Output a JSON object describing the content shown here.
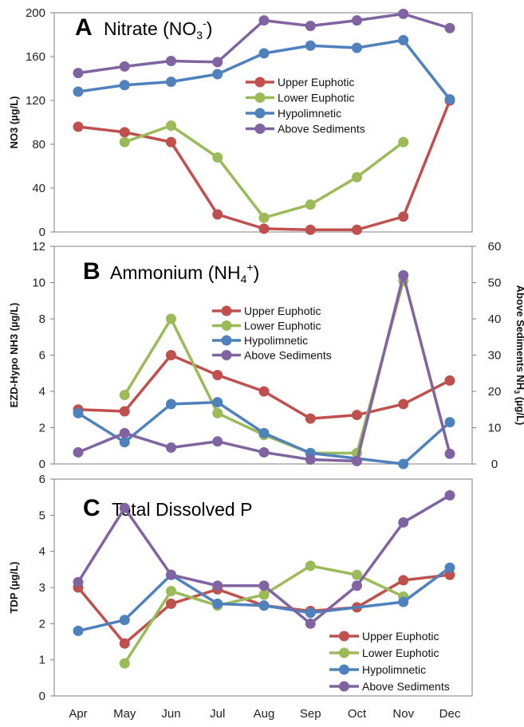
{
  "colors": {
    "upper_euphotic": "#c0504d",
    "lower_euphotic": "#9bbb59",
    "hypolimnetic": "#4f81bd",
    "above_sediments": "#8064a2"
  },
  "months": [
    "Apr",
    "May",
    "Jun",
    "Jul",
    "Aug",
    "Sep",
    "Oct",
    "Nov",
    "Dec"
  ],
  "chart_data": [
    {
      "type": "line",
      "letter": "A",
      "title": "Nitrate (NO",
      "title_sub": "3",
      "title_sup": "-",
      "title_end": ")",
      "ylabel": "NO3 (µg/L)",
      "ylim": [
        0,
        200
      ],
      "yticks": [
        "0",
        "40",
        "80",
        "120",
        "160",
        "200"
      ],
      "legend_position": "upper-right",
      "series": [
        {
          "name": "Upper Euphotic",
          "color": "#c0504d",
          "x": [
            "Apr",
            "May",
            "Jun",
            "Jul",
            "Aug",
            "Sep",
            "Oct",
            "Nov",
            "Dec"
          ],
          "values": [
            96,
            91,
            82,
            16,
            3,
            2,
            2,
            14,
            120
          ]
        },
        {
          "name": "Lower Euphotic",
          "color": "#9bbb59",
          "x": [
            "May",
            "Jun",
            "Jul",
            "Aug",
            "Sep",
            "Oct",
            "Nov"
          ],
          "values": [
            82,
            97,
            68,
            13,
            25,
            50,
            82
          ]
        },
        {
          "name": "Hypolimnetic",
          "color": "#4f81bd",
          "x": [
            "Apr",
            "May",
            "Jun",
            "Jul",
            "Aug",
            "Sep",
            "Oct",
            "Nov",
            "Dec"
          ],
          "values": [
            128,
            134,
            137,
            144,
            163,
            170,
            168,
            175,
            121
          ]
        },
        {
          "name": "Above Sediments",
          "color": "#8064a2",
          "x": [
            "Apr",
            "May",
            "Jun",
            "Jul",
            "Aug",
            "Sep",
            "Oct",
            "Nov",
            "Dec"
          ],
          "values": [
            145,
            151,
            156,
            155,
            193,
            188,
            193,
            199,
            186
          ]
        }
      ]
    },
    {
      "type": "line",
      "letter": "B",
      "title": "Ammonium (NH",
      "title_sub": "4",
      "title_sup": "+",
      "title_end": ")",
      "ylabel": "EZD-Hypo NH3 (µg/L)",
      "y2label_prefix": "Above Sediments NH",
      "y2label_sub": "3",
      "y2label_suffix": " (µg/L)",
      "ylim": [
        0,
        12
      ],
      "y2lim": [
        0,
        60
      ],
      "yticks": [
        "0",
        "2",
        "4",
        "6",
        "8",
        "10",
        "12"
      ],
      "y2ticks": [
        "0",
        "10",
        "20",
        "30",
        "40",
        "50",
        "60"
      ],
      "legend_position": "center-right",
      "series": [
        {
          "name": "Upper Euphotic",
          "color": "#c0504d",
          "axis": "left",
          "x": [
            "Apr",
            "May",
            "Jun",
            "Jul",
            "Aug",
            "Sep",
            "Oct",
            "Nov",
            "Dec"
          ],
          "values": [
            3.0,
            2.9,
            6.0,
            4.9,
            4.0,
            2.5,
            2.7,
            3.3,
            4.6
          ]
        },
        {
          "name": "Lower Euphotic",
          "color": "#9bbb59",
          "axis": "left",
          "x": [
            "May",
            "Jun",
            "Jul",
            "Aug",
            "Sep",
            "Oct",
            "Nov"
          ],
          "values": [
            3.8,
            8.0,
            2.8,
            1.6,
            0.6,
            0.6,
            10.1
          ]
        },
        {
          "name": "Hypolimnetic",
          "color": "#4f81bd",
          "axis": "left",
          "x": [
            "Apr",
            "May",
            "Jun",
            "Jul",
            "Aug",
            "Sep",
            "Nov",
            "Dec"
          ],
          "values": [
            2.8,
            1.2,
            3.3,
            3.4,
            1.7,
            0.6,
            0.0,
            2.3
          ]
        },
        {
          "name": "Above Sediments",
          "color": "#8064a2",
          "axis": "right",
          "x": [
            "Apr",
            "May",
            "Jun",
            "Jul",
            "Aug",
            "Sep",
            "Oct",
            "Nov",
            "Dec"
          ],
          "values": [
            3.2,
            8.5,
            4.5,
            6.2,
            3.2,
            1.2,
            0.8,
            52,
            2.8
          ]
        }
      ]
    },
    {
      "type": "line",
      "letter": "C",
      "title": "Total Dissolved P",
      "ylabel": "TDP  (µg/L)",
      "ylim": [
        0,
        6
      ],
      "yticks": [
        "0",
        "1",
        "2",
        "3",
        "4",
        "5",
        "6"
      ],
      "legend_position": "lower-right",
      "series": [
        {
          "name": "Upper Euphotic",
          "color": "#c0504d",
          "x": [
            "Apr",
            "May",
            "Jun",
            "Jul",
            "Aug",
            "Sep",
            "Oct",
            "Nov",
            "Dec"
          ],
          "values": [
            3.0,
            1.45,
            2.55,
            2.95,
            2.5,
            2.35,
            2.45,
            3.2,
            3.35
          ]
        },
        {
          "name": "Lower Euphotic",
          "color": "#9bbb59",
          "x": [
            "May",
            "Jun",
            "Jul",
            "Aug",
            "Sep",
            "Oct",
            "Nov"
          ],
          "values": [
            0.9,
            2.9,
            2.5,
            2.8,
            3.6,
            3.35,
            2.75
          ]
        },
        {
          "name": "Hypolimnetic",
          "color": "#4f81bd",
          "x": [
            "Apr",
            "May",
            "Jun",
            "Jul",
            "Aug",
            "Sep",
            "Nov",
            "Dec"
          ],
          "values": [
            1.8,
            2.1,
            3.35,
            2.55,
            2.5,
            2.3,
            2.6,
            3.55
          ]
        },
        {
          "name": "Above Sediments",
          "color": "#8064a2",
          "x": [
            "Apr",
            "May",
            "Jun",
            "Jul",
            "Aug",
            "Sep",
            "Oct",
            "Nov",
            "Dec"
          ],
          "values": [
            3.15,
            5.2,
            3.35,
            3.05,
            3.05,
            2.0,
            3.05,
            4.8,
            5.55
          ]
        }
      ]
    }
  ]
}
